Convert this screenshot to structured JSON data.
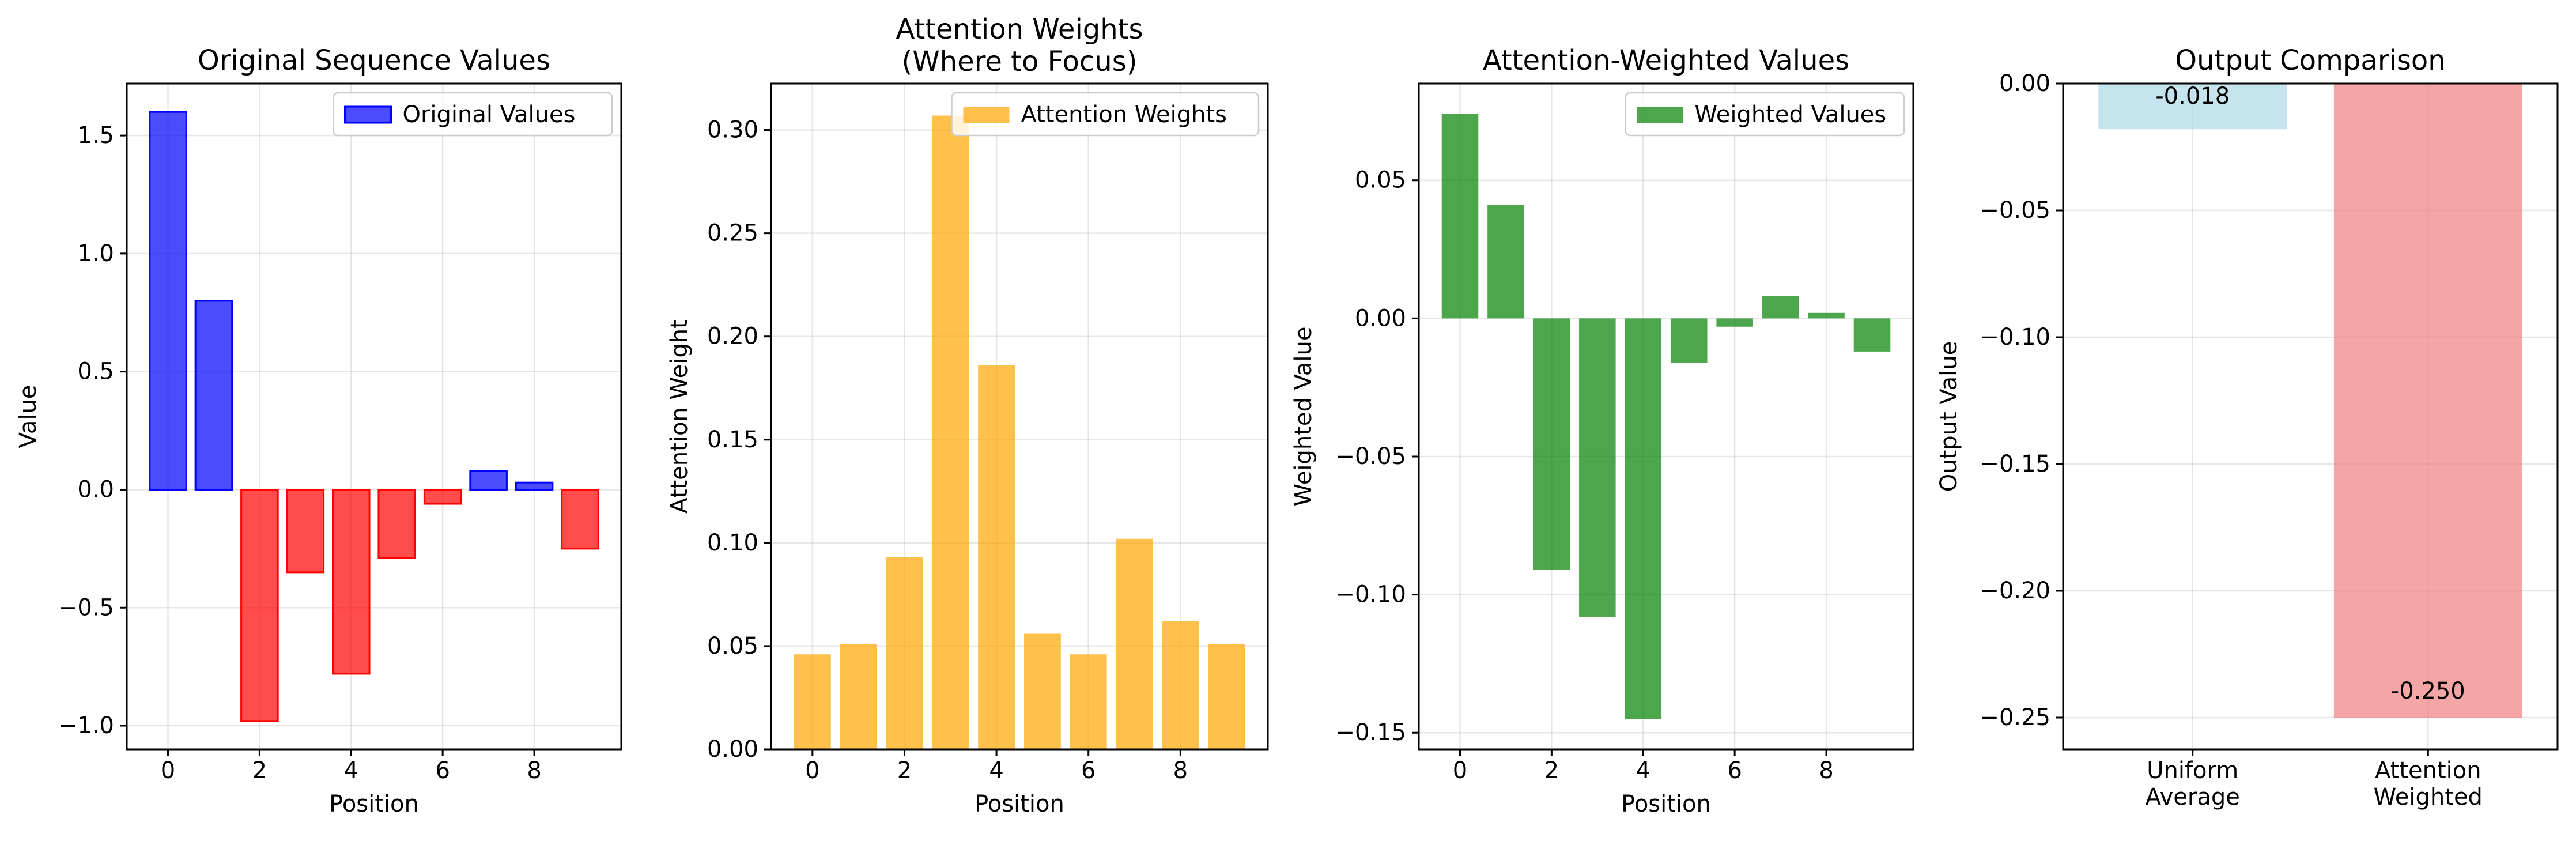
{
  "chart_data": [
    {
      "type": "bar",
      "title": "Original Sequence Values",
      "xlabel": "Position",
      "ylabel": "Value",
      "x": [
        0,
        1,
        2,
        3,
        4,
        5,
        6,
        7,
        8,
        9
      ],
      "values": [
        1.6,
        0.8,
        -0.98,
        -0.35,
        -0.78,
        -0.29,
        -0.06,
        0.08,
        0.03,
        -0.25
      ],
      "colors": {
        "positive": "#0000ff",
        "negative": "#ff0000"
      },
      "xlim": [
        -0.9,
        9.9
      ],
      "ylim": [
        -1.1,
        1.72
      ],
      "xticks": [
        0,
        2,
        4,
        6,
        8
      ],
      "yticks": [
        -1.0,
        -0.5,
        0.0,
        0.5,
        1.0,
        1.5
      ],
      "ytick_labels": [
        "−1.0",
        "−0.5",
        "0.0",
        "0.5",
        "1.0",
        "1.5"
      ],
      "grid": true,
      "legend": {
        "label": "Original Values",
        "color": "#0000ff",
        "placement": "upper-right"
      }
    },
    {
      "type": "bar",
      "title": "Attention Weights\n(Where to Focus)",
      "title_lines": [
        "Attention Weights",
        "(Where to Focus)"
      ],
      "xlabel": "Position",
      "ylabel": "Attention Weight",
      "x": [
        0,
        1,
        2,
        3,
        4,
        5,
        6,
        7,
        8,
        9
      ],
      "values": [
        0.046,
        0.051,
        0.093,
        0.307,
        0.186,
        0.056,
        0.046,
        0.102,
        0.062,
        0.051
      ],
      "color": "#ffa500",
      "xlim": [
        -0.9,
        9.9
      ],
      "ylim": [
        0.0,
        0.3225
      ],
      "xticks": [
        0,
        2,
        4,
        6,
        8
      ],
      "yticks": [
        0.0,
        0.05,
        0.1,
        0.15,
        0.2,
        0.25,
        0.3
      ],
      "ytick_labels": [
        "0.00",
        "0.05",
        "0.10",
        "0.15",
        "0.20",
        "0.25",
        "0.30"
      ],
      "grid": true,
      "legend": {
        "label": "Attention Weights",
        "color": "#ffa500",
        "placement": "upper-right"
      }
    },
    {
      "type": "bar",
      "title": "Attention-Weighted Values",
      "xlabel": "Position",
      "ylabel": "Weighted Value",
      "x": [
        0,
        1,
        2,
        3,
        4,
        5,
        6,
        7,
        8,
        9
      ],
      "values": [
        0.074,
        0.041,
        -0.091,
        -0.108,
        -0.145,
        -0.016,
        -0.003,
        0.008,
        0.002,
        -0.012
      ],
      "color": "#008000",
      "xlim": [
        -0.9,
        9.9
      ],
      "ylim": [
        -0.156,
        0.085
      ],
      "xticks": [
        0,
        2,
        4,
        6,
        8
      ],
      "yticks": [
        -0.15,
        -0.1,
        -0.05,
        0.0,
        0.05
      ],
      "ytick_labels": [
        "−0.15",
        "−0.10",
        "−0.05",
        "0.00",
        "0.05"
      ],
      "grid": true,
      "legend": {
        "label": "Weighted Values",
        "color": "#008000",
        "placement": "upper-right"
      }
    },
    {
      "type": "bar",
      "title": "Output Comparison",
      "xlabel": "",
      "ylabel": "Output Value",
      "categories": [
        "Uniform\nAverage",
        "Attention\nWeighted"
      ],
      "category_lines": [
        [
          "Uniform",
          "Average"
        ],
        [
          "Attention",
          "Weighted"
        ]
      ],
      "values": [
        -0.018,
        -0.25
      ],
      "colors": [
        "#add8e6",
        "#f08080"
      ],
      "data_labels": [
        "-0.018",
        "-0.250"
      ],
      "xlim": [
        -0.55,
        1.55
      ],
      "ylim": [
        -0.2625,
        0.0
      ],
      "yticks": [
        -0.25,
        -0.2,
        -0.15,
        -0.1,
        -0.05,
        0.0
      ],
      "ytick_labels": [
        "−0.25",
        "−0.20",
        "−0.15",
        "−0.10",
        "−0.05",
        "0.00"
      ],
      "grid": true
    }
  ]
}
